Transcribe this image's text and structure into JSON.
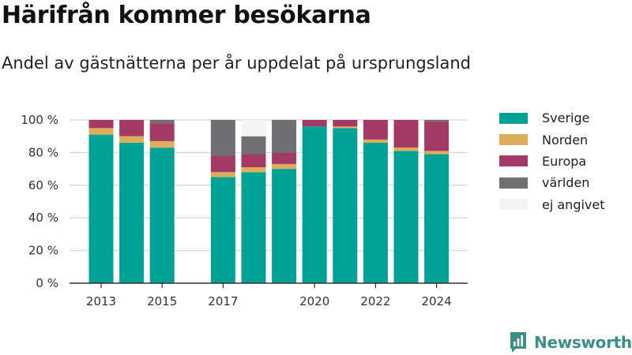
{
  "chart_data": {
    "type": "bar",
    "stacked": true,
    "title": "Härifrån kommer besökarna",
    "subtitle": "Andel av gästnätterna per år uppdelat på ursprungsland",
    "xlabel": "",
    "ylabel": "",
    "ylim": [
      0,
      100
    ],
    "yticks": [
      0,
      20,
      40,
      60,
      80,
      100
    ],
    "ytick_labels": [
      "0 %",
      "20 %",
      "40 %",
      "60 %",
      "80 %",
      "100 %"
    ],
    "xticks": [
      2013,
      2015,
      2017,
      2020,
      2022,
      2024
    ],
    "x": [
      2013,
      2014,
      2015,
      2016,
      2017,
      2018,
      2019,
      2020,
      2021,
      2022,
      2023,
      2024
    ],
    "grid": true,
    "legend_position": "right",
    "series": [
      {
        "name": "Sverige",
        "color": "#00a295",
        "values": [
          91,
          86,
          83,
          null,
          65,
          68,
          70,
          96,
          95,
          86,
          81,
          79
        ]
      },
      {
        "name": "Norden",
        "color": "#dcae5a",
        "values": [
          4,
          4,
          4,
          null,
          3,
          3,
          3,
          0,
          1,
          2,
          2,
          2
        ]
      },
      {
        "name": "Europa",
        "color": "#a33a64",
        "values": [
          5,
          10,
          11,
          null,
          10,
          8,
          7,
          4,
          4,
          12,
          17,
          18
        ]
      },
      {
        "name": "världen",
        "color": "#707073",
        "values": [
          0,
          0,
          2,
          null,
          22,
          11,
          20,
          0,
          0,
          0,
          0,
          1
        ]
      },
      {
        "name": "ej angivet",
        "color": "#f4f4f4",
        "values": [
          0,
          0,
          0,
          null,
          0,
          10,
          0,
          0,
          0,
          0,
          0,
          0
        ]
      }
    ]
  },
  "logo": {
    "text": "Newsworthy",
    "color": "#3a8f86",
    "icon": "newsworthy-bar-icon"
  }
}
